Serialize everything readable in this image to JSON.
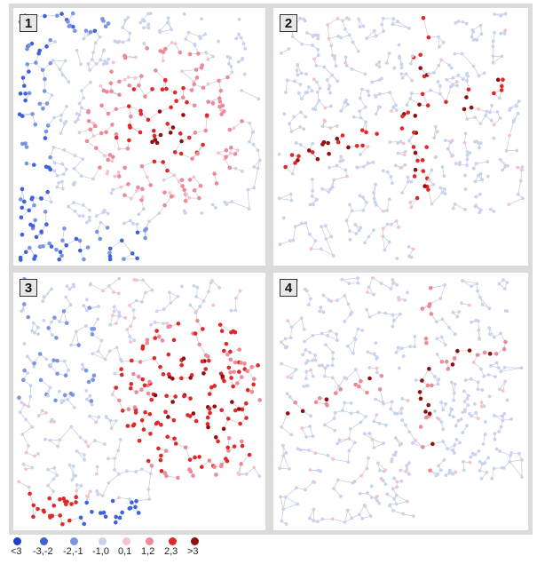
{
  "colors": {
    "street": "#b9c1cf",
    "panel_bg": "#ffffff",
    "frame": "#d9dcd9",
    "classes": [
      "#1b3fd1",
      "#3d62da",
      "#7b95e3",
      "#c9d3ef",
      "#f4c3cb",
      "#ec8a98",
      "#e0282b",
      "#8e1010"
    ]
  },
  "legend": {
    "items": [
      {
        "label": "<3"
      },
      {
        "label": "-3,-2"
      },
      {
        "label": "-2,-1"
      },
      {
        "label": "-1,0"
      },
      {
        "label": "0,1"
      },
      {
        "label": "1,2"
      },
      {
        "label": "2,3"
      },
      {
        "label": ">3"
      }
    ]
  },
  "panels": [
    {
      "label": "1"
    },
    {
      "label": "2"
    },
    {
      "label": "3"
    },
    {
      "label": "4"
    }
  ]
}
